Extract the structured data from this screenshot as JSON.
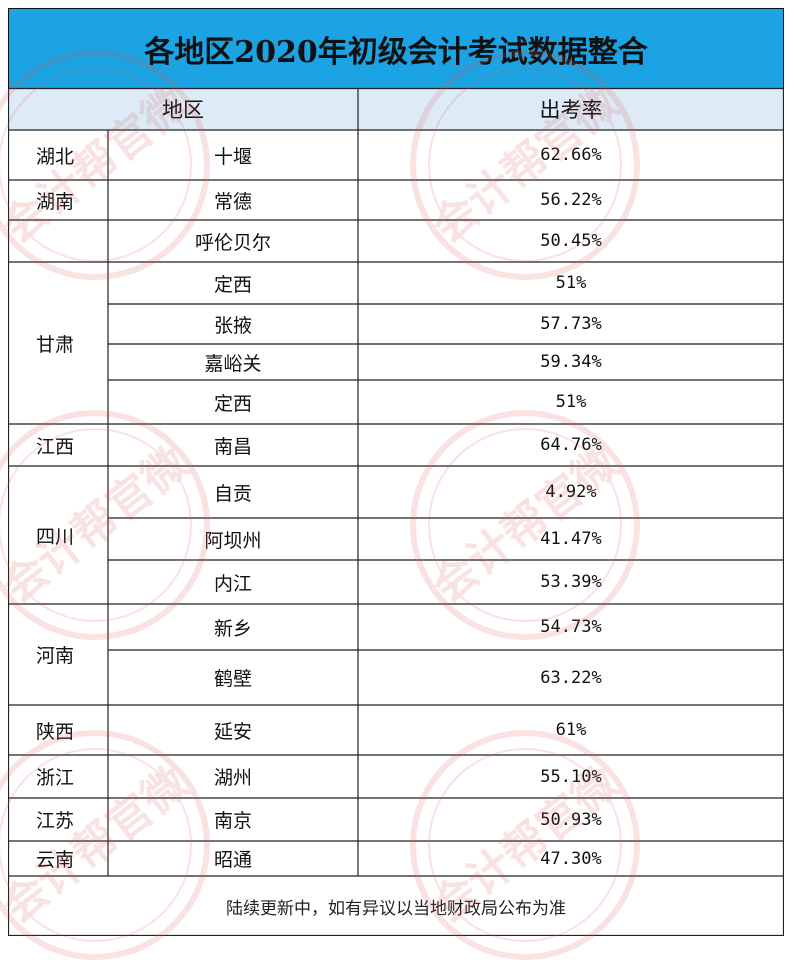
{
  "title": "各地区2020年初级会计考试数据整合",
  "headers": {
    "region": "地区",
    "rate": "出考率"
  },
  "rows": [
    {
      "province": "湖北",
      "city": "十堰",
      "rate": "62.66%"
    },
    {
      "province": "湖南",
      "city": "常德",
      "rate": "56.22%"
    },
    {
      "province": "",
      "city": "呼伦贝尔",
      "rate": "50.45%"
    },
    {
      "province": "甘肃",
      "city": "定西",
      "rate": "51%"
    },
    {
      "province": "",
      "city": "张掖",
      "rate": "57.73%"
    },
    {
      "province": "",
      "city": "嘉峪关",
      "rate": "59.34%"
    },
    {
      "province": "",
      "city": "定西",
      "rate": "51%"
    },
    {
      "province": "江西",
      "city": "南昌",
      "rate": "64.76%"
    },
    {
      "province": "四川",
      "city": "自贡",
      "rate": "4.92%"
    },
    {
      "province": "",
      "city": "阿坝州",
      "rate": "41.47%"
    },
    {
      "province": "",
      "city": "内江",
      "rate": "53.39%"
    },
    {
      "province": "河南",
      "city": "新乡",
      "rate": "54.73%"
    },
    {
      "province": "",
      "city": "鹤壁",
      "rate": "63.22%"
    },
    {
      "province": "陕西",
      "city": "延安",
      "rate": "61%"
    },
    {
      "province": "浙江",
      "city": "湖州",
      "rate": "55.10%"
    },
    {
      "province": "江苏",
      "city": "南京",
      "rate": "50.93%"
    },
    {
      "province": "云南",
      "city": "昭通",
      "rate": "47.30%"
    }
  ],
  "footer": "陆续更新中，如有异议以当地财政局公布为准",
  "watermark": {
    "text": "会计帮官微",
    "color": "#d9534f"
  },
  "colors": {
    "title_bg": "#1ba3e4",
    "header_bg": "#ddebf7"
  }
}
